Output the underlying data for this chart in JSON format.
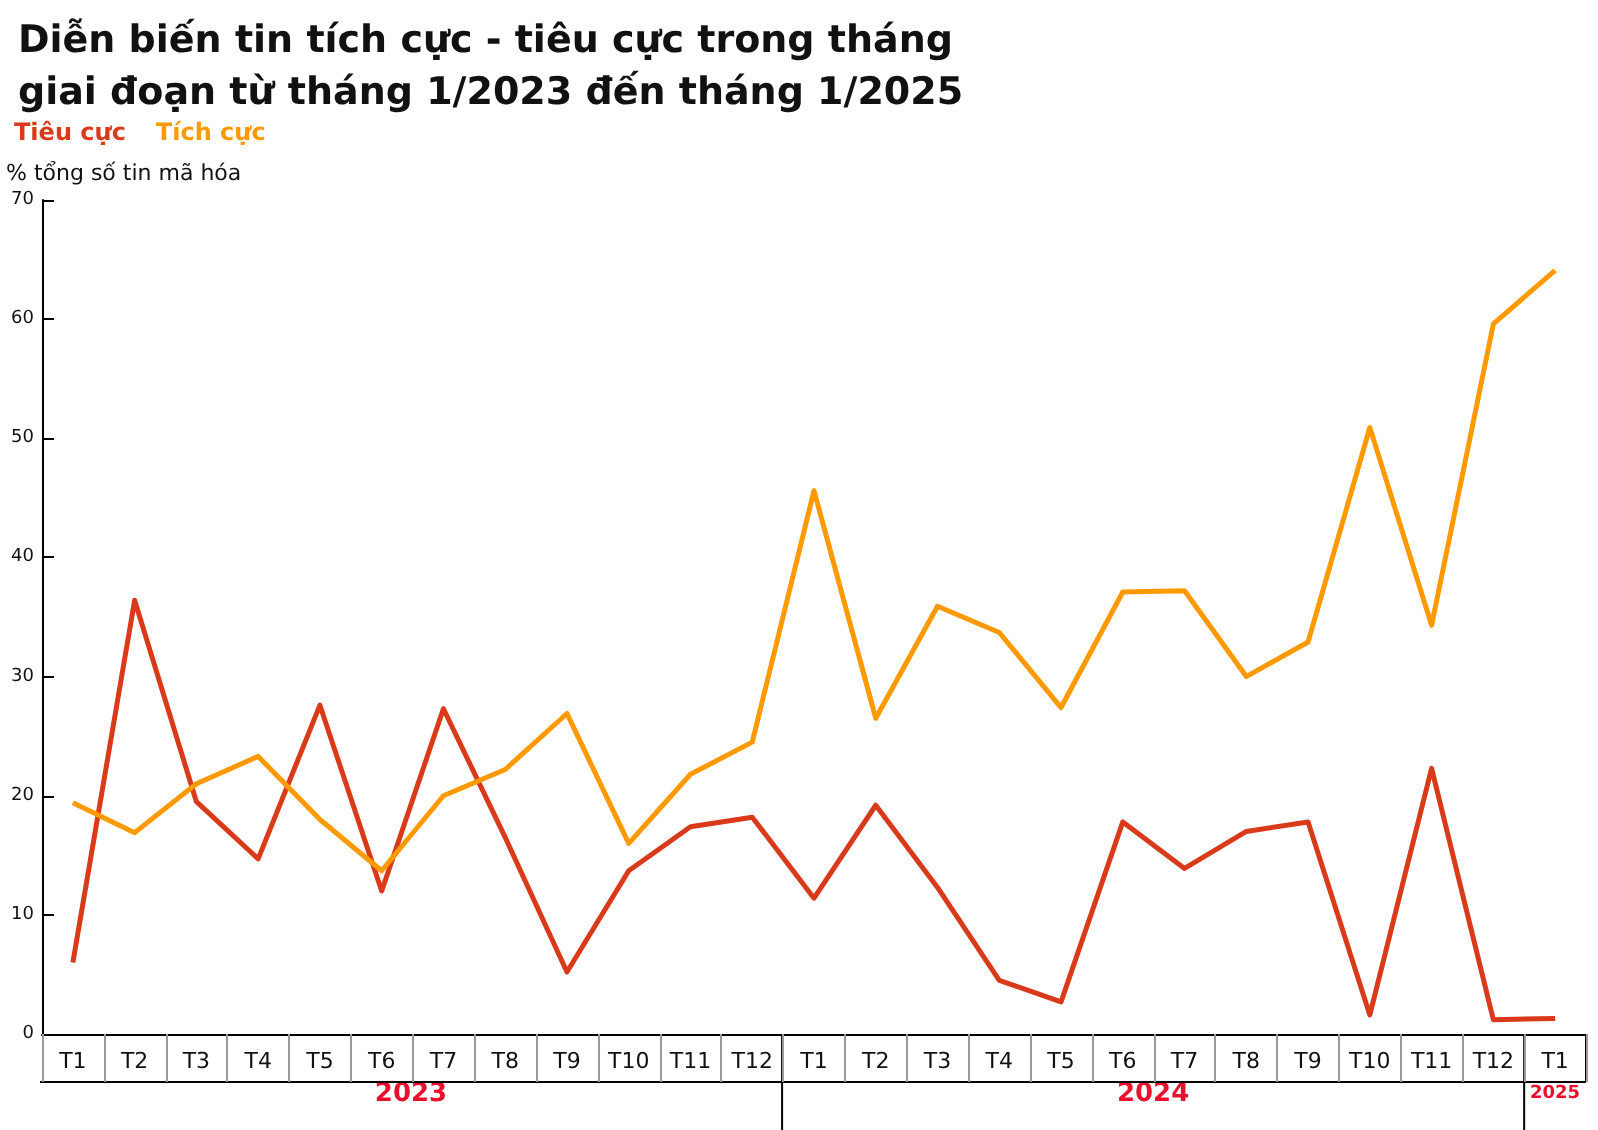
{
  "chart_data": {
    "type": "line",
    "title": "Diễn biến tin tích cực - tiêu cực trong tháng\ngiai đoạn từ tháng 1/2023 đến tháng 1/2025",
    "ylabel": "% tổng số tin mã hóa",
    "categories": [
      "T1",
      "T2",
      "T3",
      "T4",
      "T5",
      "T6",
      "T7",
      "T8",
      "T9",
      "T10",
      "T11",
      "T12",
      "T1",
      "T2",
      "T3",
      "T4",
      "T5",
      "T6",
      "T7",
      "T8",
      "T9",
      "T10",
      "T11",
      "T12",
      "T1"
    ],
    "series": [
      {
        "name": "Tiêu cực",
        "color": "#d83a1a",
        "values": [
          6,
          36.4,
          19.5,
          14.7,
          27.6,
          12,
          27.3,
          16.5,
          5.2,
          13.7,
          17.4,
          18.2,
          11.4,
          19.2,
          12.3,
          4.5,
          2.7,
          17.8,
          13.9,
          17,
          17.8,
          1.6,
          22.3,
          1.2,
          1.3
        ]
      },
      {
        "name": "Tích cực",
        "color": "#ff9900",
        "values": [
          19.4,
          16.9,
          21,
          23.3,
          18,
          13.7,
          20,
          22.2,
          26.9,
          16,
          21.8,
          24.5,
          45.6,
          26.5,
          35.9,
          33.7,
          27.4,
          37.1,
          37.2,
          30,
          32.9,
          50.9,
          34.3,
          59.6,
          64.1
        ]
      }
    ],
    "annotations": [
      "2023",
      "2024",
      "2025"
    ],
    "ylim": [
      0,
      70
    ],
    "yticks": [
      0,
      10,
      20,
      30,
      40,
      50,
      60,
      70
    ],
    "grid": false,
    "legend": "top left",
    "marker": "none",
    "line_style": "solid"
  }
}
